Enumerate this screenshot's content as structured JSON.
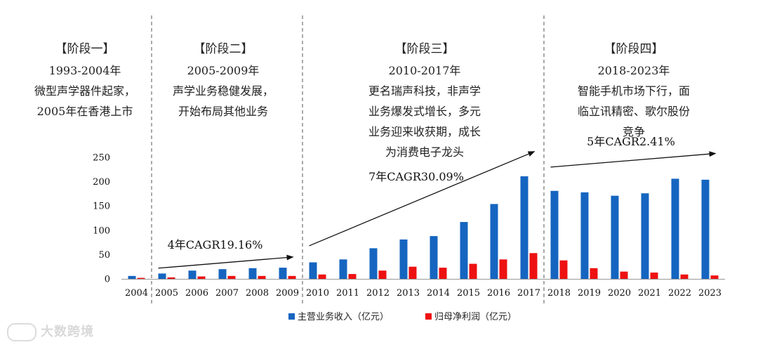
{
  "chart_data": {
    "type": "bar",
    "categories": [
      "2004",
      "2005",
      "2006",
      "2007",
      "2008",
      "2009",
      "2010",
      "2011",
      "2012",
      "2013",
      "2014",
      "2015",
      "2016",
      "2017",
      "2018",
      "2019",
      "2020",
      "2021",
      "2022",
      "2023"
    ],
    "series": [
      {
        "name": "主营业务收入（亿元）",
        "color": "#1565c0",
        "values": [
          6,
          11,
          17,
          20,
          22,
          23,
          34,
          40,
          63,
          81,
          88,
          117,
          154,
          211,
          181,
          178,
          171,
          176,
          206,
          204
        ]
      },
      {
        "name": "归母净利润（亿元）",
        "color": "#ee1111",
        "values": [
          2,
          3,
          5,
          6,
          6,
          6,
          9,
          10,
          17,
          25,
          23,
          31,
          40,
          53,
          38,
          22,
          15,
          13,
          9,
          7
        ]
      }
    ],
    "ylim": [
      0,
      250
    ],
    "yticks": [
      0,
      50,
      100,
      150,
      200,
      250
    ],
    "legend_position": "bottom-center",
    "stages": [
      {
        "title": "【阶段一】",
        "lines": [
          "1993-2004年",
          "微型声学器件起家，",
          "2005年在香港上市"
        ]
      },
      {
        "title": "【阶段二】",
        "lines": [
          "2005-2009年",
          "声学业务稳健发展，",
          "开始布局其他业务"
        ]
      },
      {
        "title": "【阶段三】",
        "lines": [
          "2010-2017年",
          "更名瑞声科技，非声学",
          "业务爆发式增长，多元",
          "业务迎来收获期，成长",
          "为消费电子龙头"
        ]
      },
      {
        "title": "【阶段四】",
        "lines": [
          "2018-2023年",
          "智能手机市场下行，面",
          "临立讯精密、歌尔股份",
          "竞争"
        ]
      }
    ],
    "annotations": [
      {
        "text": "4年CAGR19.16%",
        "from_year": "2005",
        "to_year": "2009",
        "from_value": 22,
        "to_value": 45
      },
      {
        "text": "7年CAGR30.09%",
        "from_year": "2010",
        "to_year": "2017",
        "from_value": 68,
        "to_value": 262
      },
      {
        "text": "5年CAGR2.41%",
        "from_year": "2018",
        "to_year": "2023",
        "from_value": 230,
        "to_value": 258
      }
    ]
  },
  "watermark": "大数跨境"
}
